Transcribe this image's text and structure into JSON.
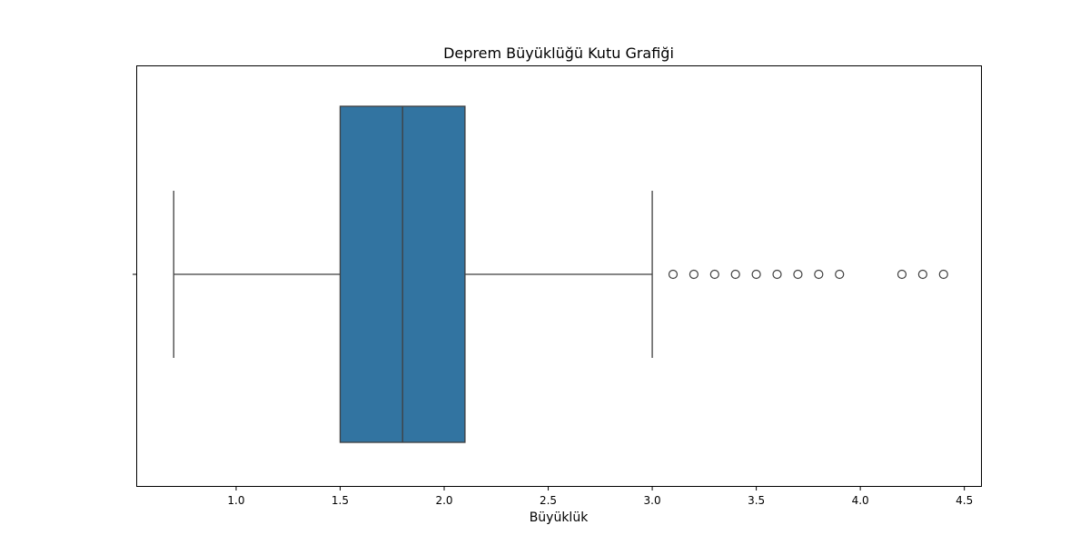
{
  "chart_data": {
    "type": "boxplot",
    "orientation": "horizontal",
    "title": "Deprem Büyüklüğü Kutu Grafiği",
    "xlabel": "Büyüklük",
    "ylabel": "",
    "xlim": [
      0.52,
      4.58
    ],
    "xticks": [
      1.0,
      1.5,
      2.0,
      2.5,
      3.0,
      3.5,
      4.0,
      4.5
    ],
    "xtick_labels": [
      "1.0",
      "1.5",
      "2.0",
      "2.5",
      "3.0",
      "3.5",
      "4.0",
      "4.5"
    ],
    "box": {
      "whisker_low": 0.7,
      "q1": 1.5,
      "median": 1.8,
      "q3": 2.1,
      "whisker_high": 3.0
    },
    "outliers": [
      3.1,
      3.2,
      3.3,
      3.4,
      3.5,
      3.6,
      3.7,
      3.8,
      3.9,
      4.2,
      4.3,
      4.4
    ],
    "box_color": "#3274a1",
    "line_color": "#3f3f3f",
    "grid": false,
    "legend": false
  }
}
